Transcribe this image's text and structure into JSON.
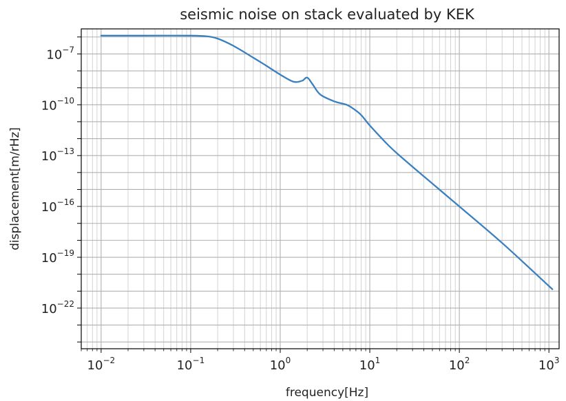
{
  "chart_data": {
    "type": "line",
    "title": "seismic noise on stack evaluated by KEK",
    "xlabel": "frequency[Hz]",
    "ylabel": "displacement[m/rHz]",
    "xscale": "log",
    "yscale": "log",
    "xlim": [
      0.006,
      1300
    ],
    "ylim": [
      4e-25,
      3e-06
    ],
    "grid": "on (major and minor)",
    "x_ticks": [
      {
        "value": 0.01,
        "base": "10",
        "exp": "−2"
      },
      {
        "value": 0.1,
        "base": "10",
        "exp": "−1"
      },
      {
        "value": 1,
        "base": "10",
        "exp": "0"
      },
      {
        "value": 10,
        "base": "10",
        "exp": "1"
      },
      {
        "value": 100,
        "base": "10",
        "exp": "2"
      },
      {
        "value": 1000,
        "base": "10",
        "exp": "3"
      }
    ],
    "y_ticks": [
      {
        "value": 1e-07,
        "base": "10",
        "exp": "−7"
      },
      {
        "value": 1e-10,
        "base": "10",
        "exp": "−10"
      },
      {
        "value": 1e-13,
        "base": "10",
        "exp": "−13"
      },
      {
        "value": 1e-16,
        "base": "10",
        "exp": "−16"
      },
      {
        "value": 1e-19,
        "base": "10",
        "exp": "−19"
      },
      {
        "value": 1e-22,
        "base": "10",
        "exp": "−22"
      }
    ],
    "series": [
      {
        "color": "#3a80bf",
        "points": [
          [
            0.01,
            1.2e-06
          ],
          [
            0.03,
            1.2e-06
          ],
          [
            0.1,
            1.2e-06
          ],
          [
            0.15,
            1.1e-06
          ],
          [
            0.2,
            8e-07
          ],
          [
            0.3,
            3e-07
          ],
          [
            0.5,
            6e-08
          ],
          [
            0.7,
            2e-08
          ],
          [
            1.0,
            6e-09
          ],
          [
            1.4,
            2.3e-09
          ],
          [
            1.75,
            2.6e-09
          ],
          [
            2.0,
            4e-09
          ],
          [
            2.3,
            1.6e-09
          ],
          [
            2.8,
            4e-10
          ],
          [
            4.0,
            1.6e-10
          ],
          [
            5.5,
            1e-10
          ],
          [
            6.5,
            6e-11
          ],
          [
            8.0,
            2.5e-11
          ],
          [
            10,
            6e-12
          ],
          [
            15,
            6e-13
          ],
          [
            20,
            1.4e-13
          ],
          [
            40,
            6e-15
          ],
          [
            100,
            1e-16
          ],
          [
            300,
            7e-19
          ],
          [
            1000,
            2e-21
          ],
          [
            1000,
            2e-21
          ]
        ]
      }
    ]
  }
}
